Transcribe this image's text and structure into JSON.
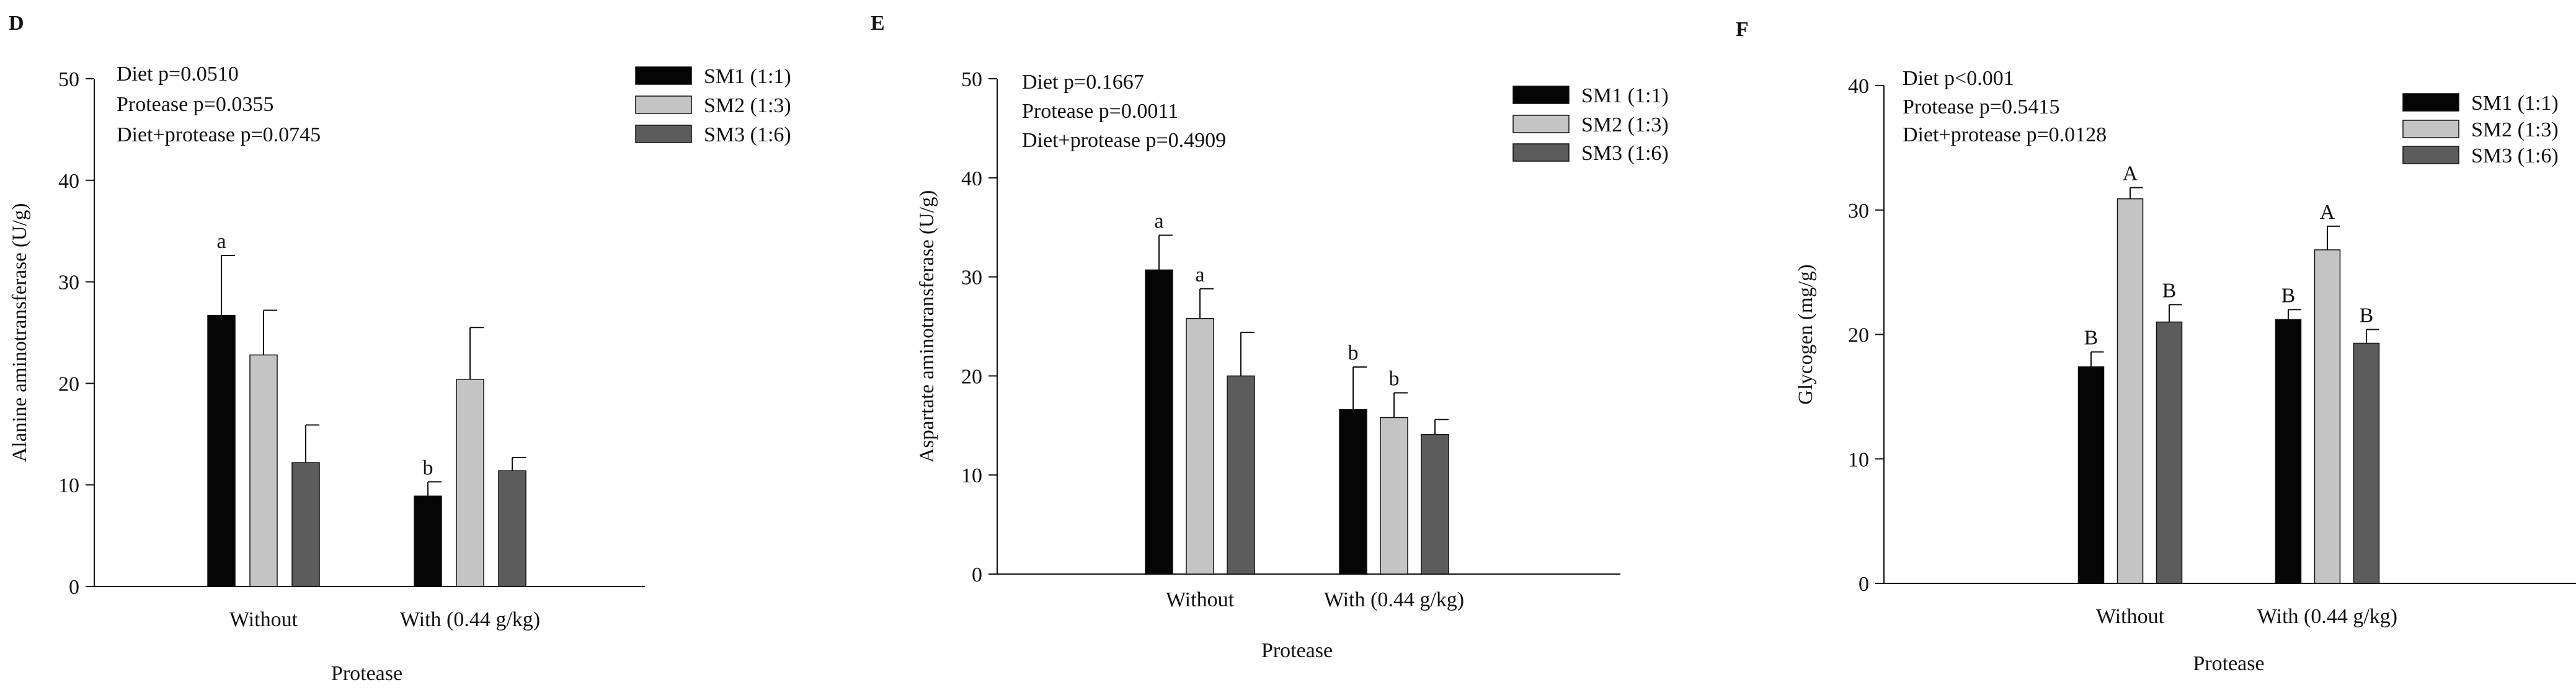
{
  "colors": {
    "SM1 (1:1)": "#050505",
    "SM2 (1:3)": "#c4c4c4",
    "SM3 (1:6)": "#5c5c5c",
    "axis": "#111111"
  },
  "chart_data": [
    {
      "type": "bar",
      "panel_label": "D",
      "title": "",
      "xlabel": "Protease",
      "ylabel": "Alanine aminotransferase (U/g)",
      "ylim": [
        0,
        50
      ],
      "yticks": [
        0,
        10,
        20,
        30,
        40,
        50
      ],
      "categories": [
        "Without",
        "With (0.44 g/kg)"
      ],
      "stats": [
        "Diet p=0.0510",
        "Protease p=0.0355",
        "Diet+protease p=0.0745"
      ],
      "legend": [
        "SM1 (1:1)",
        "SM2 (1:3)",
        "SM3 (1:6)"
      ],
      "series": [
        {
          "name": "SM1 (1:1)",
          "values": [
            26.7,
            8.9
          ],
          "errors": [
            5.9,
            1.4
          ],
          "labels": [
            "a",
            "b"
          ]
        },
        {
          "name": "SM2 (1:3)",
          "values": [
            22.8,
            20.4
          ],
          "errors": [
            4.4,
            5.1
          ],
          "labels": [
            "",
            ""
          ]
        },
        {
          "name": "SM3 (1:6)",
          "values": [
            12.2,
            11.4
          ],
          "errors": [
            3.7,
            1.3
          ],
          "labels": [
            "",
            ""
          ]
        }
      ]
    },
    {
      "type": "bar",
      "panel_label": "E",
      "title": "",
      "xlabel": "Protease",
      "ylabel": "Aspartate aminotransferase (U/g)",
      "ylim": [
        0,
        50
      ],
      "yticks": [
        0,
        10,
        20,
        30,
        40,
        50
      ],
      "categories": [
        "Without",
        "With (0.44 g/kg)"
      ],
      "stats": [
        "Diet p=0.1667",
        "Protease p=0.0011",
        "Diet+protease p=0.4909"
      ],
      "legend": [
        "SM1 (1:1)",
        "SM2 (1:3)",
        "SM3 (1:6)"
      ],
      "series": [
        {
          "name": "SM1 (1:1)",
          "values": [
            30.7,
            16.6
          ],
          "errors": [
            3.5,
            4.3
          ],
          "labels": [
            "a",
            "b"
          ]
        },
        {
          "name": "SM2 (1:3)",
          "values": [
            25.8,
            15.8
          ],
          "errors": [
            3.0,
            2.5
          ],
          "labels": [
            "a",
            "b"
          ]
        },
        {
          "name": "SM3 (1:6)",
          "values": [
            20.0,
            14.1
          ],
          "errors": [
            4.4,
            1.5
          ],
          "labels": [
            "",
            ""
          ]
        }
      ]
    },
    {
      "type": "bar",
      "panel_label": "F",
      "title": "",
      "xlabel": "Protease",
      "ylabel": "Glycogen (mg/g)",
      "ylim": [
        0,
        40
      ],
      "yticks": [
        0,
        10,
        20,
        30,
        40
      ],
      "categories": [
        "Without",
        "With (0.44 g/kg)"
      ],
      "stats": [
        "Diet p<0.001",
        "Protease p=0.5415",
        "Diet+protease p=0.0128"
      ],
      "legend": [
        "SM1 (1:1)",
        "SM2 (1:3)",
        "SM3 (1:6)"
      ],
      "series": [
        {
          "name": "SM1 (1:1)",
          "values": [
            17.4,
            21.2
          ],
          "errors": [
            1.2,
            0.8
          ],
          "labels": [
            "B",
            "B"
          ]
        },
        {
          "name": "SM2 (1:3)",
          "values": [
            30.9,
            26.8
          ],
          "errors": [
            0.9,
            1.9
          ],
          "labels": [
            "A",
            "A"
          ]
        },
        {
          "name": "SM3 (1:6)",
          "values": [
            21.0,
            19.3
          ],
          "errors": [
            1.4,
            1.1
          ],
          "labels": [
            "B",
            "B"
          ]
        }
      ]
    }
  ]
}
